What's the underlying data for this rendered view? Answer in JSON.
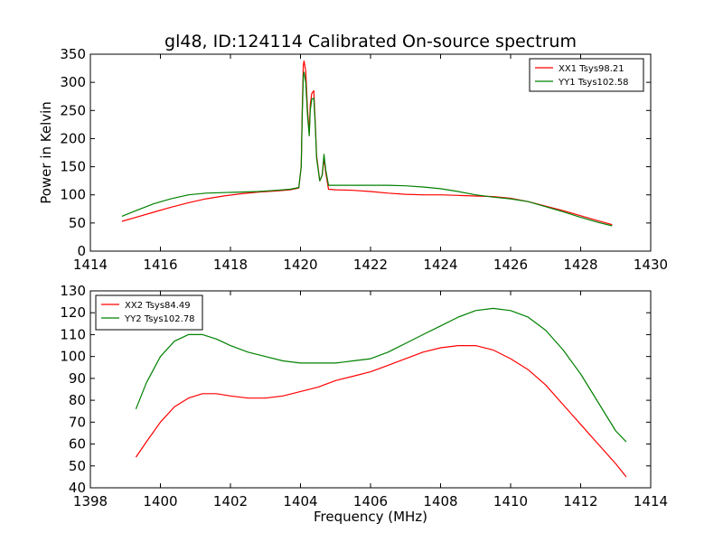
{
  "figure": {
    "title": "gl48, ID:124114 Calibrated On-source spectrum"
  },
  "chart_data": [
    {
      "type": "line",
      "title": "gl48, ID:124114 Calibrated On-source spectrum",
      "xlabel": "",
      "ylabel": "Power in Kelvin",
      "xlim": [
        1414,
        1430
      ],
      "ylim": [
        0,
        350
      ],
      "xticks": [
        "1414",
        "1416",
        "1418",
        "1420",
        "1422",
        "1424",
        "1426",
        "1428",
        "1430"
      ],
      "yticks": [
        "0",
        "50",
        "100",
        "150",
        "200",
        "250",
        "300",
        "350"
      ],
      "legend_position": "top-right",
      "grid": false,
      "series": [
        {
          "name": "XX1 Tsys98.21",
          "color": "#ff0000",
          "x": [
            1414.9,
            1415.3,
            1415.8,
            1416.3,
            1416.8,
            1417.3,
            1417.8,
            1418.3,
            1418.8,
            1419.3,
            1419.7,
            1419.95,
            1420.02,
            1420.05,
            1420.08,
            1420.1,
            1420.15,
            1420.2,
            1420.25,
            1420.28,
            1420.32,
            1420.38,
            1420.42,
            1420.46,
            1420.55,
            1420.62,
            1420.67,
            1420.72,
            1420.8,
            1421.0,
            1421.5,
            1422.0,
            1422.5,
            1423.0,
            1423.5,
            1424.0,
            1424.5,
            1425.0,
            1425.5,
            1426.0,
            1426.5,
            1427.0,
            1427.5,
            1428.0,
            1428.5,
            1428.9
          ],
          "y": [
            53,
            60,
            69,
            78,
            86,
            93,
            98,
            102,
            105,
            107,
            109,
            112,
            150,
            250,
            330,
            338,
            320,
            250,
            210,
            260,
            280,
            285,
            230,
            170,
            125,
            135,
            165,
            140,
            110,
            109,
            108,
            106,
            103,
            101,
            100,
            100,
            99,
            98,
            97,
            94,
            88,
            80,
            72,
            63,
            54,
            47
          ]
        },
        {
          "name": "YY1 Tsys102.58",
          "color": "#008000",
          "x": [
            1414.9,
            1415.3,
            1415.8,
            1416.3,
            1416.8,
            1417.3,
            1417.8,
            1418.3,
            1418.8,
            1419.3,
            1419.7,
            1419.95,
            1420.02,
            1420.05,
            1420.08,
            1420.1,
            1420.15,
            1420.2,
            1420.25,
            1420.28,
            1420.32,
            1420.38,
            1420.42,
            1420.46,
            1420.55,
            1420.62,
            1420.67,
            1420.72,
            1420.8,
            1421.0,
            1421.5,
            1422.0,
            1422.5,
            1423.0,
            1423.5,
            1424.0,
            1424.5,
            1425.0,
            1425.5,
            1426.0,
            1426.5,
            1427.0,
            1427.5,
            1428.0,
            1428.5,
            1428.9
          ],
          "y": [
            62,
            72,
            84,
            93,
            100,
            103,
            104,
            105,
            106,
            108,
            110,
            113,
            150,
            240,
            310,
            318,
            300,
            240,
            205,
            250,
            270,
            272,
            225,
            165,
            125,
            135,
            172,
            145,
            117,
            117,
            117,
            117,
            117,
            116,
            114,
            111,
            106,
            100,
            96,
            93,
            88,
            79,
            70,
            60,
            51,
            45
          ]
        }
      ]
    },
    {
      "type": "line",
      "title": "",
      "xlabel": "Frequency (MHz)",
      "ylabel": "",
      "xlim": [
        1398,
        1414
      ],
      "ylim": [
        40,
        130
      ],
      "xticks": [
        "1398",
        "1400",
        "1402",
        "1404",
        "1406",
        "1408",
        "1410",
        "1412",
        "1414"
      ],
      "yticks": [
        "40",
        "50",
        "60",
        "70",
        "80",
        "90",
        "100",
        "110",
        "120",
        "130"
      ],
      "legend_position": "top-left",
      "grid": false,
      "series": [
        {
          "name": "XX2 Tsys84.49",
          "color": "#ff0000",
          "x": [
            1399.3,
            1399.6,
            1400.0,
            1400.4,
            1400.8,
            1401.2,
            1401.6,
            1402.0,
            1402.5,
            1403.0,
            1403.5,
            1404.0,
            1404.5,
            1405.0,
            1405.5,
            1406.0,
            1406.5,
            1407.0,
            1407.5,
            1408.0,
            1408.5,
            1409.0,
            1409.5,
            1410.0,
            1410.5,
            1411.0,
            1411.5,
            1412.0,
            1412.5,
            1413.0,
            1413.3
          ],
          "y": [
            54,
            61,
            70,
            77,
            81,
            83,
            83,
            82,
            81,
            81,
            82,
            84,
            86,
            89,
            91,
            93,
            96,
            99,
            102,
            104,
            105,
            105,
            103,
            99,
            94,
            87,
            78,
            69,
            60,
            51,
            45
          ]
        },
        {
          "name": "YY2 Tsys102.78",
          "color": "#008000",
          "x": [
            1399.3,
            1399.6,
            1400.0,
            1400.4,
            1400.8,
            1401.2,
            1401.6,
            1402.0,
            1402.5,
            1403.0,
            1403.5,
            1404.0,
            1404.5,
            1405.0,
            1405.5,
            1406.0,
            1406.5,
            1407.0,
            1407.5,
            1408.0,
            1408.5,
            1409.0,
            1409.5,
            1410.0,
            1410.5,
            1411.0,
            1411.5,
            1412.0,
            1412.5,
            1413.0,
            1413.3
          ],
          "y": [
            76,
            88,
            100,
            107,
            110,
            110,
            108,
            105,
            102,
            100,
            98,
            97,
            97,
            97,
            98,
            99,
            102,
            106,
            110,
            114,
            118,
            121,
            122,
            121,
            118,
            112,
            103,
            92,
            79,
            66,
            61
          ]
        }
      ]
    }
  ]
}
